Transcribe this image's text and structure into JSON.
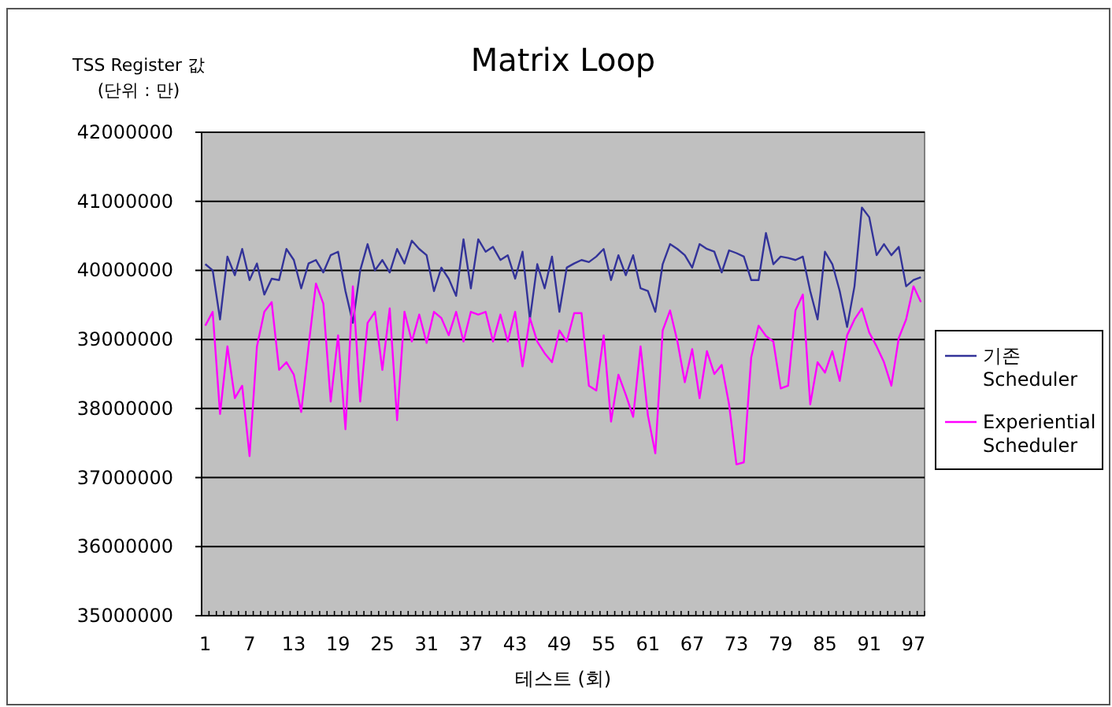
{
  "chart_data": {
    "type": "line",
    "title": "Matrix Loop",
    "ylabel": "TSS Register 값 (단위 : 만)",
    "xlabel": "테스트 (회)",
    "categories": [
      "1",
      null,
      null,
      null,
      null,
      null,
      "7",
      null,
      null,
      null,
      null,
      null,
      "13",
      null,
      null,
      null,
      null,
      null,
      "19",
      null,
      null,
      null,
      null,
      null,
      "25",
      null,
      null,
      null,
      null,
      null,
      "31",
      null,
      null,
      null,
      null,
      null,
      "37",
      null,
      null,
      null,
      null,
      null,
      "43",
      null,
      null,
      null,
      null,
      null,
      "49",
      null,
      null,
      null,
      null,
      null,
      "55",
      null,
      null,
      null,
      null,
      null,
      "61",
      null,
      null,
      null,
      null,
      null,
      "67",
      null,
      null,
      null,
      null,
      null,
      "73",
      null,
      null,
      null,
      null,
      null,
      "79",
      null,
      null,
      null,
      null,
      null,
      "85",
      null,
      null,
      null,
      null,
      null,
      "91",
      null,
      null,
      null,
      null,
      null,
      "97",
      null
    ],
    "series": [
      {
        "name": "기존 Scheduler",
        "color": "#333399",
        "values": [
          40090000,
          40000000,
          39290000,
          40200000,
          39930000,
          40310000,
          39860000,
          40100000,
          39650000,
          39880000,
          39860000,
          40310000,
          40150000,
          39740000,
          40100000,
          40150000,
          39970000,
          40220000,
          40270000,
          39700000,
          39240000,
          40000000,
          40380000,
          40000000,
          40150000,
          39970000,
          40310000,
          40100000,
          40430000,
          40310000,
          40220000,
          39700000,
          40040000,
          39880000,
          39630000,
          40450000,
          39740000,
          40450000,
          40270000,
          40340000,
          40150000,
          40220000,
          39880000,
          40270000,
          39290000,
          40090000,
          39740000,
          40200000,
          39400000,
          40040000,
          40100000,
          40150000,
          40120000,
          40200000,
          40310000,
          39860000,
          40220000,
          39930000,
          40220000,
          39740000,
          39700000,
          39400000,
          40090000,
          40380000,
          40310000,
          40220000,
          40040000,
          40380000,
          40310000,
          40270000,
          39970000,
          40290000,
          40250000,
          40200000,
          39860000,
          39860000,
          40540000,
          40090000,
          40200000,
          40180000,
          40150000,
          40200000,
          39700000,
          39290000,
          40270000,
          40090000,
          39700000,
          39180000,
          39770000,
          40910000,
          40770000,
          40220000,
          40380000,
          40220000,
          40340000,
          39770000,
          39860000,
          39900000
        ]
      },
      {
        "name": "Experiential Scheduler",
        "color": "#ff00ff",
        "values": [
          39200000,
          39400000,
          37920000,
          38900000,
          38150000,
          38330000,
          37310000,
          38900000,
          39400000,
          39540000,
          38560000,
          38670000,
          38490000,
          37950000,
          38900000,
          39810000,
          39520000,
          38100000,
          39060000,
          37700000,
          39770000,
          38100000,
          39240000,
          39400000,
          38560000,
          39450000,
          37830000,
          39400000,
          38970000,
          39360000,
          38950000,
          39400000,
          39310000,
          39060000,
          39400000,
          38970000,
          39400000,
          39360000,
          39400000,
          38970000,
          39360000,
          38970000,
          39400000,
          38610000,
          39310000,
          38970000,
          38800000,
          38670000,
          39130000,
          38970000,
          39380000,
          39380000,
          38330000,
          38260000,
          39060000,
          37810000,
          38490000,
          38200000,
          37880000,
          38900000,
          37900000,
          37350000,
          39130000,
          39420000,
          38970000,
          38380000,
          38860000,
          38150000,
          38830000,
          38500000,
          38630000,
          38060000,
          37190000,
          37220000,
          38740000,
          39200000,
          39050000,
          38970000,
          38290000,
          38330000,
          39420000,
          39650000,
          38060000,
          38670000,
          38520000,
          38830000,
          38400000,
          39060000,
          39290000,
          39450000,
          39100000,
          38900000,
          38670000,
          38330000,
          39020000,
          39290000,
          39770000,
          39540000
        ]
      }
    ],
    "ylim": [
      35000000,
      42000000
    ],
    "yticks": [
      35000000,
      36000000,
      37000000,
      38000000,
      39000000,
      40000000,
      41000000,
      42000000
    ],
    "grid": "y",
    "legend": "right",
    "marker": "none",
    "line_style": "solid"
  }
}
